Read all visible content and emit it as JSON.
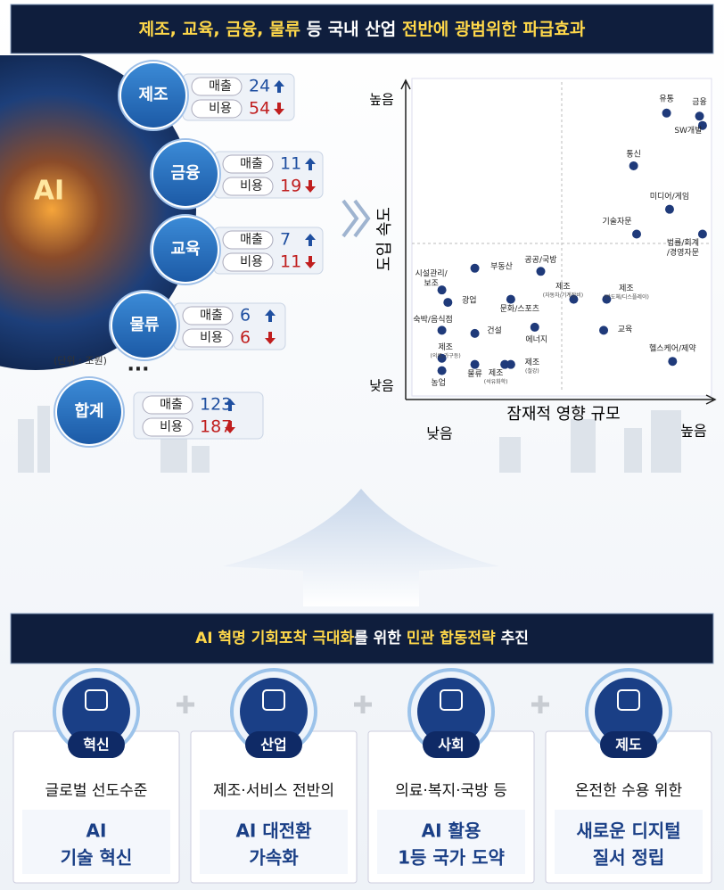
{
  "top_banner": {
    "segments": [
      {
        "text": "제조, 교육, 금융, 물류",
        "color": "#ffd84a"
      },
      {
        "text": " 등 국내 산업 ",
        "color": "#ffffff"
      },
      {
        "text": "전반에 광범위한 파급효과",
        "color": "#ffd84a"
      }
    ]
  },
  "industries": [
    {
      "name": "제조",
      "rows": [
        {
          "label": "매출",
          "value": 24,
          "trend": "up"
        },
        {
          "label": "비용",
          "value": 54,
          "trend": "down"
        }
      ]
    },
    {
      "name": "금융",
      "rows": [
        {
          "label": "매출",
          "value": 11,
          "trend": "up"
        },
        {
          "label": "비용",
          "value": 19,
          "trend": "down"
        }
      ]
    },
    {
      "name": "교육",
      "rows": [
        {
          "label": "매출",
          "value": 7,
          "trend": "up"
        },
        {
          "label": "비용",
          "value": 11,
          "trend": "down"
        }
      ]
    },
    {
      "name": "물류",
      "rows": [
        {
          "label": "매출",
          "value": 6,
          "trend": "up"
        },
        {
          "label": "비용",
          "value": 6,
          "trend": "down"
        }
      ]
    }
  ],
  "unit_note": "(단위 : 조원)",
  "ellipsis": "···",
  "total": {
    "name": "합계",
    "rows": [
      {
        "label": "매출",
        "value": 123,
        "trend": "up"
      },
      {
        "label": "비용",
        "value": 187,
        "trend": "down"
      }
    ]
  },
  "chart_data": {
    "type": "scatter",
    "y_label": "도입 속도",
    "x_label": "잠재적 영향 규모",
    "y_high": "높음",
    "y_low": "낮음",
    "x_low": "낮음",
    "x_high": "높음",
    "xlim": [
      0,
      100
    ],
    "ylim": [
      0,
      100
    ],
    "color": "#1f3a7a",
    "points": [
      {
        "label": [
          "유통"
        ],
        "x": 85,
        "y": 90
      },
      {
        "label": [
          "금융"
        ],
        "x": 96,
        "y": 89
      },
      {
        "label": [
          "SW개발"
        ],
        "x": 97,
        "y": 86
      },
      {
        "label": [
          "통신"
        ],
        "x": 74,
        "y": 73
      },
      {
        "label": [
          "미디어/게임"
        ],
        "x": 86,
        "y": 59
      },
      {
        "label": [
          "기술자문"
        ],
        "x": 75,
        "y": 51
      },
      {
        "label": [
          "법률/회계",
          "/경영자문"
        ],
        "x": 97,
        "y": 51
      },
      {
        "label": [
          "부동산"
        ],
        "x": 21,
        "y": 40
      },
      {
        "label": [
          "공공/국방"
        ],
        "x": 43,
        "y": 39
      },
      {
        "label": [
          "시설관리/",
          "보조"
        ],
        "x": 10,
        "y": 33
      },
      {
        "label": [
          "광업"
        ],
        "x": 12,
        "y": 29
      },
      {
        "label": [
          "제조"
        ],
        "note": "(자동차/기계장비)",
        "x": 54,
        "y": 30
      },
      {
        "label": [
          "제조"
        ],
        "note": "(반도체/디스플레이)",
        "x": 65,
        "y": 30
      },
      {
        "label": [
          "문화/스포츠"
        ],
        "x": 33,
        "y": 30
      },
      {
        "label": [
          "숙박/음식점"
        ],
        "x": 10,
        "y": 20
      },
      {
        "label": [
          "건설"
        ],
        "x": 21,
        "y": 19
      },
      {
        "label": [
          "에너지"
        ],
        "x": 41,
        "y": 21
      },
      {
        "label": [
          "교육"
        ],
        "x": 64,
        "y": 20
      },
      {
        "label": [
          "헬스케어/제약"
        ],
        "x": 87,
        "y": 10
      },
      {
        "label": [
          "제조"
        ],
        "note": "(의류,가구등)",
        "x": 10,
        "y": 11
      },
      {
        "label": [
          "농업"
        ],
        "x": 10,
        "y": 7
      },
      {
        "label": [
          "물류"
        ],
        "x": 21,
        "y": 9
      },
      {
        "label": [
          "제조"
        ],
        "note": "(석유화학)",
        "x": 31,
        "y": 9
      },
      {
        "label": [
          "제조"
        ],
        "note": "(철강)",
        "x": 33,
        "y": 9
      }
    ]
  },
  "bottom_banner": {
    "segments": [
      {
        "text": "AI 혁명 기회포착 극대화",
        "color": "#ffd84a"
      },
      {
        "text": "를 위한 ",
        "color": "#ffffff"
      },
      {
        "text": "민관 합동전략",
        "color": "#ffd84a"
      },
      {
        "text": " 추진",
        "color": "#ffffff"
      }
    ]
  },
  "strategies": [
    {
      "tag": "혁신",
      "subtitle": "글로벌 선도수준",
      "headline": [
        "AI",
        "기술 혁신"
      ]
    },
    {
      "tag": "산업",
      "subtitle": "제조·서비스 전반의",
      "headline": [
        "AI 대전환",
        "가속화"
      ]
    },
    {
      "tag": "사회",
      "subtitle": "의료·복지·국방 등",
      "headline": [
        "AI 활용",
        "1등 국가 도약"
      ]
    },
    {
      "tag": "제도",
      "subtitle": "온전한 수용 위한",
      "headline": [
        "새로운 디지털",
        "질서 정립"
      ]
    }
  ]
}
